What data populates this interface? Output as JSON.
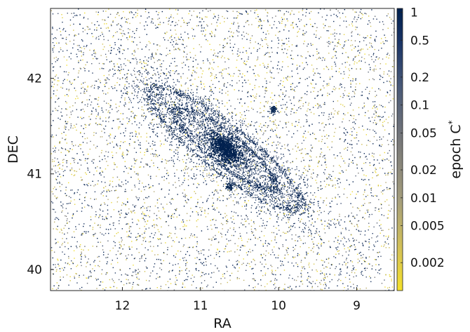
{
  "chart_data": {
    "type": "scatter",
    "title": "",
    "xlabel": "RA",
    "ylabel": "DEC",
    "xlim": [
      12.92,
      8.52
    ],
    "ylim": [
      39.78,
      42.73
    ],
    "x_ticks": [
      {
        "value": 12,
        "label": "12"
      },
      {
        "value": 11,
        "label": "11"
      },
      {
        "value": 10,
        "label": "10"
      },
      {
        "value": 9,
        "label": "9"
      }
    ],
    "y_ticks": [
      {
        "value": 40,
        "label": "40"
      },
      {
        "value": 41,
        "label": "41"
      },
      {
        "value": 42,
        "label": "42"
      }
    ],
    "colorbar": {
      "label": "epoch C",
      "label_superscript": "*",
      "scale": "log",
      "range": [
        0.001,
        1.1
      ],
      "colormap": [
        "#f5e12a",
        "#b0a474",
        "#7a7a7a",
        "#4a5a78",
        "#0d2a5a",
        "#00204d"
      ],
      "ticks": [
        {
          "value": 1,
          "label": "1"
        },
        {
          "value": 0.5,
          "label": "0.5"
        },
        {
          "value": 0.2,
          "label": "0.2"
        },
        {
          "value": 0.1,
          "label": "0.1"
        },
        {
          "value": 0.05,
          "label": "0.05"
        },
        {
          "value": 0.02,
          "label": "0.02"
        },
        {
          "value": 0.01,
          "label": "0.01"
        },
        {
          "value": 0.005,
          "label": "0.005"
        },
        {
          "value": 0.002,
          "label": "0.002"
        }
      ]
    },
    "galaxy": {
      "center_ra": 10.69,
      "center_dec": 41.27,
      "position_angle_deg": 38,
      "disk_major_deg": 1.6,
      "disk_minor_deg": 0.37
    },
    "satellites": [
      {
        "ra": 10.07,
        "dec": 41.68
      },
      {
        "ra": 10.63,
        "dec": 40.87
      }
    ]
  }
}
